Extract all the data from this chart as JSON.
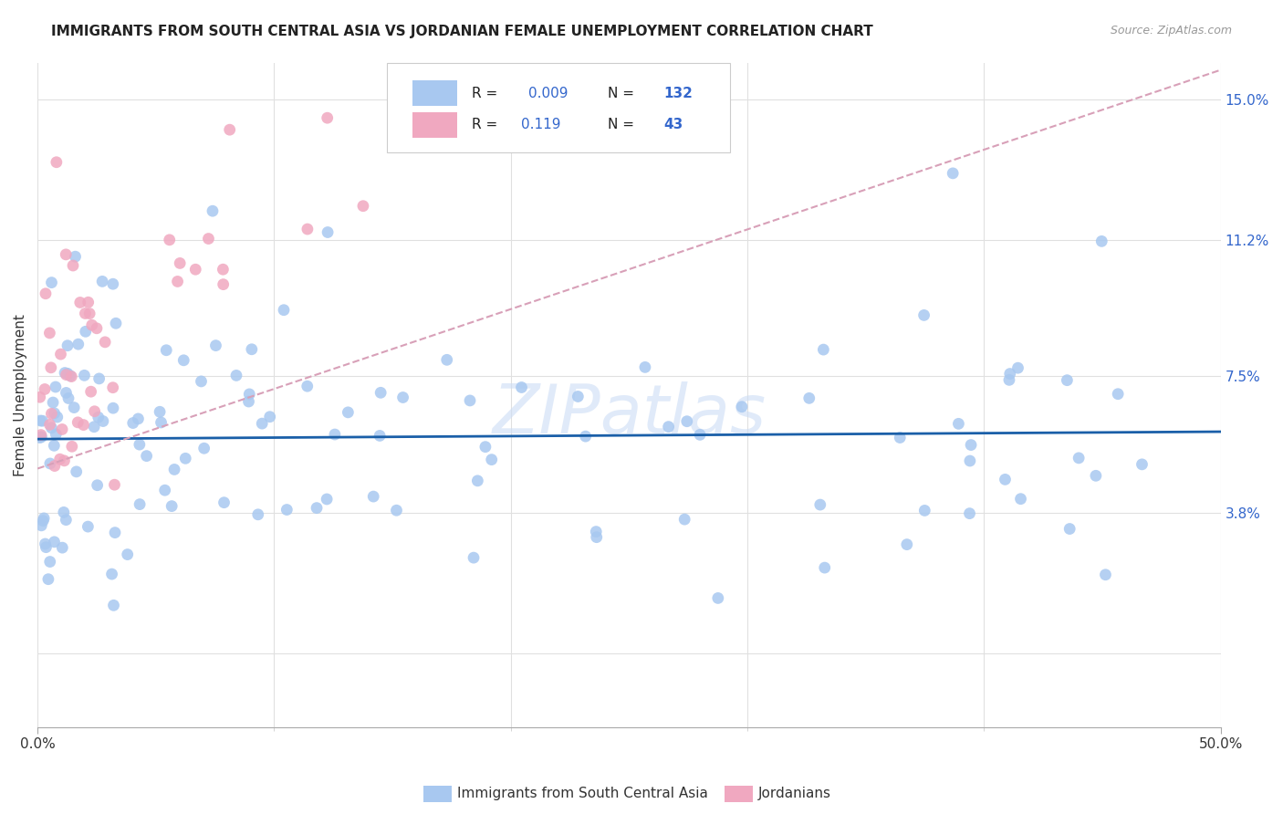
{
  "title": "IMMIGRANTS FROM SOUTH CENTRAL ASIA VS JORDANIAN FEMALE UNEMPLOYMENT CORRELATION CHART",
  "source": "Source: ZipAtlas.com",
  "ylabel": "Female Unemployment",
  "ytick_vals": [
    0.0,
    0.038,
    0.075,
    0.112,
    0.15
  ],
  "ytick_labels": [
    "",
    "3.8%",
    "7.5%",
    "11.2%",
    "15.0%"
  ],
  "xmin": 0.0,
  "xmax": 0.5,
  "ymin": -0.02,
  "ymax": 0.16,
  "blue_color": "#a8c8f0",
  "pink_color": "#f0a8c0",
  "trendline_blue": "#1a5fa8",
  "trendline_pink": "#d8a0b8",
  "legend_R_blue": "0.009",
  "legend_N_blue": "132",
  "legend_R_pink": "0.119",
  "legend_N_pink": "43",
  "legend_label_blue": "Immigrants from South Central Asia",
  "legend_label_pink": "Jordanians",
  "watermark": "ZIPatlas"
}
